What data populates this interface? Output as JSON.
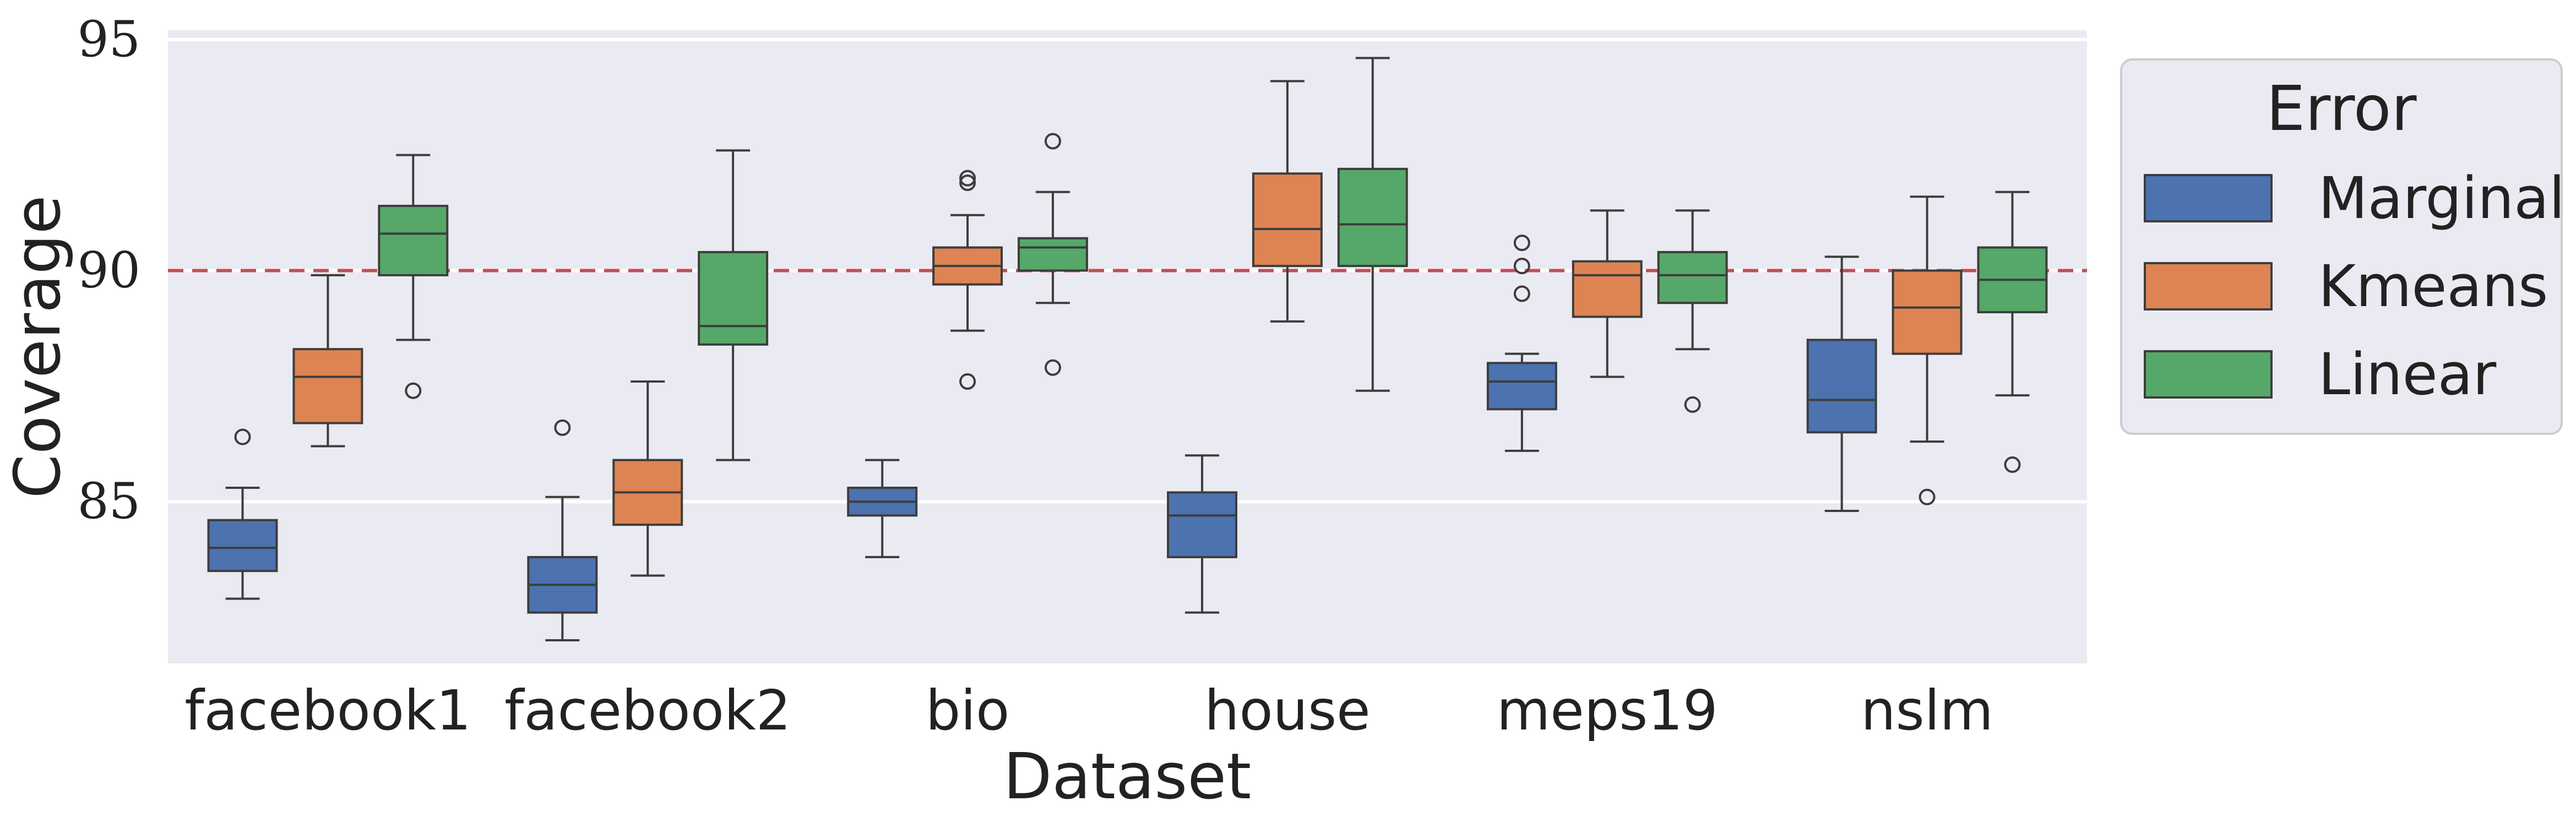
{
  "chart_data": {
    "type": "boxplot",
    "title": "",
    "xlabel": "Dataset",
    "ylabel": "Coverage",
    "ylim": [
      81.5,
      95.2
    ],
    "yticks": [
      85,
      90,
      95
    ],
    "reference_line": {
      "y": 90,
      "style": "dashed",
      "color": "#c44e52"
    },
    "categories": [
      "facebook1",
      "facebook2",
      "bio",
      "house",
      "meps19",
      "nslm"
    ],
    "legend": {
      "title": "Error",
      "position": "outside-right"
    },
    "series": [
      {
        "name": "Marginal",
        "color": "#4c72b0",
        "boxes": [
          {
            "q1": 83.5,
            "median": 84.0,
            "q3": 84.6,
            "whislo": 82.9,
            "whishi": 85.3,
            "fliers": [
              86.4
            ]
          },
          {
            "q1": 82.6,
            "median": 83.2,
            "q3": 83.8,
            "whislo": 82.0,
            "whishi": 85.1,
            "fliers": [
              86.6
            ]
          },
          {
            "q1": 84.7,
            "median": 85.0,
            "q3": 85.3,
            "whislo": 83.8,
            "whishi": 85.9,
            "fliers": []
          },
          {
            "q1": 83.8,
            "median": 84.7,
            "q3": 85.2,
            "whislo": 82.6,
            "whishi": 86.0,
            "fliers": []
          },
          {
            "q1": 87.0,
            "median": 87.6,
            "q3": 88.0,
            "whislo": 86.1,
            "whishi": 88.2,
            "fliers": [
              89.5,
              90.1,
              90.6
            ]
          },
          {
            "q1": 86.5,
            "median": 87.2,
            "q3": 88.5,
            "whislo": 84.8,
            "whishi": 90.3,
            "fliers": []
          }
        ]
      },
      {
        "name": "Kmeans",
        "color": "#dd8452",
        "boxes": [
          {
            "q1": 86.7,
            "median": 87.7,
            "q3": 88.3,
            "whislo": 86.2,
            "whishi": 89.9,
            "fliers": []
          },
          {
            "q1": 84.5,
            "median": 85.2,
            "q3": 85.9,
            "whislo": 83.4,
            "whishi": 87.6,
            "fliers": []
          },
          {
            "q1": 89.7,
            "median": 90.1,
            "q3": 90.5,
            "whislo": 88.7,
            "whishi": 91.2,
            "fliers": [
              87.6,
              91.9,
              92.0
            ]
          },
          {
            "q1": 90.1,
            "median": 90.9,
            "q3": 92.1,
            "whislo": 88.9,
            "whishi": 94.1,
            "fliers": []
          },
          {
            "q1": 89.0,
            "median": 89.9,
            "q3": 90.2,
            "whislo": 87.7,
            "whishi": 91.3,
            "fliers": []
          },
          {
            "q1": 88.2,
            "median": 89.2,
            "q3": 90.0,
            "whislo": 86.3,
            "whishi": 91.6,
            "fliers": [
              85.1
            ]
          }
        ]
      },
      {
        "name": "Linear",
        "color": "#55a868",
        "boxes": [
          {
            "q1": 89.9,
            "median": 90.8,
            "q3": 91.4,
            "whislo": 88.5,
            "whishi": 92.5,
            "fliers": [
              87.4
            ]
          },
          {
            "q1": 88.4,
            "median": 88.8,
            "q3": 90.4,
            "whislo": 85.9,
            "whishi": 92.6,
            "fliers": []
          },
          {
            "q1": 90.0,
            "median": 90.5,
            "q3": 90.7,
            "whislo": 89.3,
            "whishi": 91.7,
            "fliers": [
              87.9,
              92.8
            ]
          },
          {
            "q1": 90.1,
            "median": 91.0,
            "q3": 92.2,
            "whislo": 87.4,
            "whishi": 94.6,
            "fliers": []
          },
          {
            "q1": 89.3,
            "median": 89.9,
            "q3": 90.4,
            "whislo": 88.3,
            "whishi": 91.3,
            "fliers": [
              87.1
            ]
          },
          {
            "q1": 89.1,
            "median": 89.8,
            "q3": 90.5,
            "whislo": 87.3,
            "whishi": 91.7,
            "fliers": [
              85.8
            ]
          }
        ]
      }
    ]
  }
}
